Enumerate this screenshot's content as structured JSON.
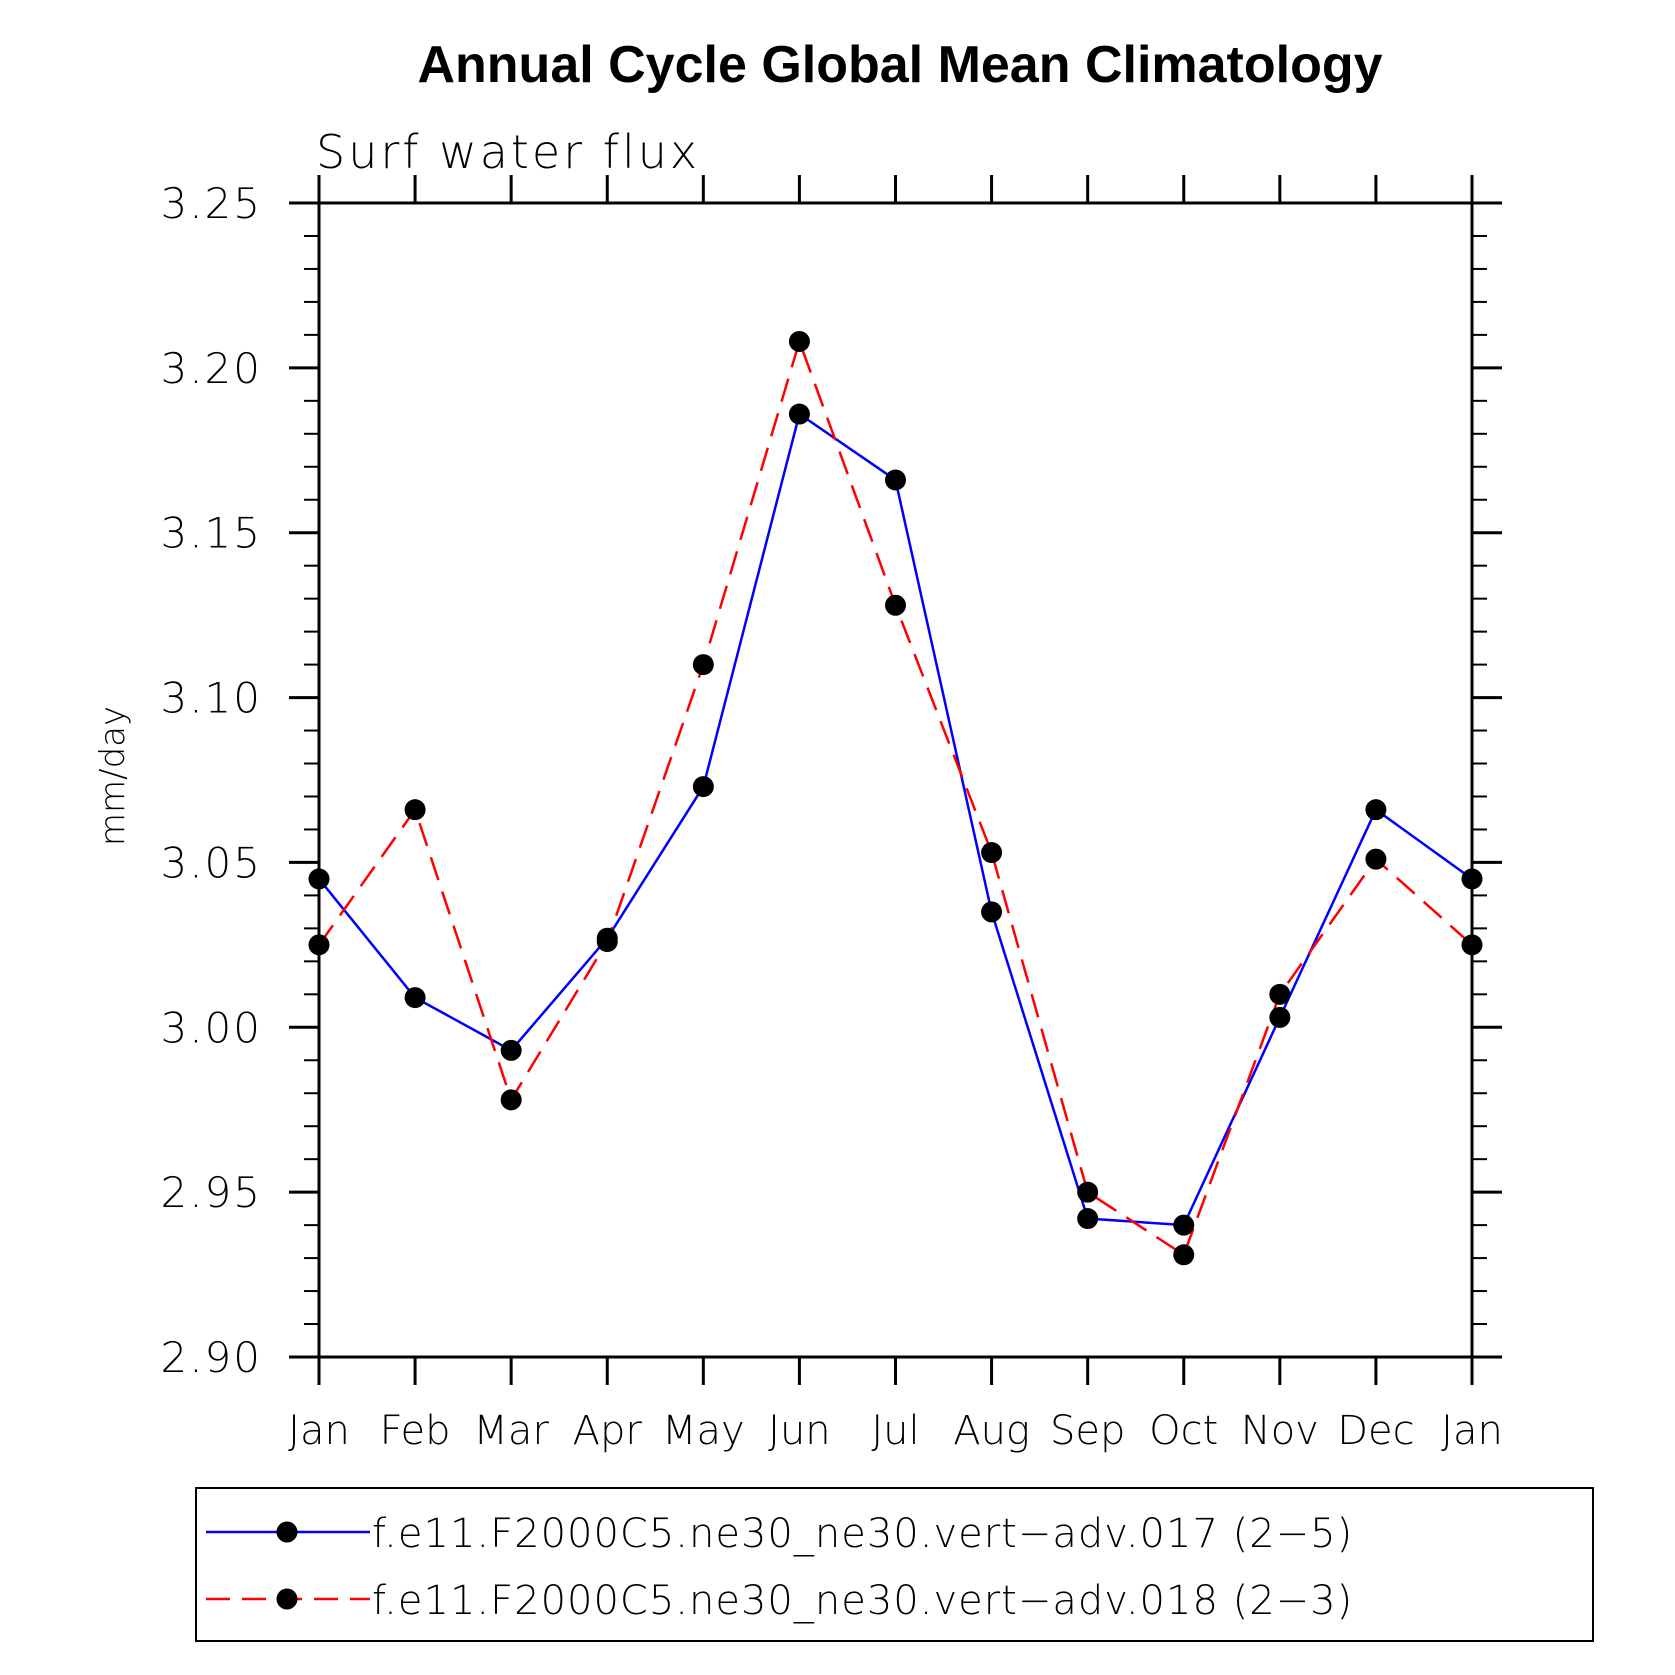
{
  "chart_data": {
    "type": "line",
    "title": "Annual Cycle Global Mean Climatology",
    "subtitle": "Surf water flux",
    "xlabel": "",
    "ylabel": "mm/day",
    "categories": [
      "Jan",
      "Feb",
      "Mar",
      "Apr",
      "May",
      "Jun",
      "Jul",
      "Aug",
      "Sep",
      "Oct",
      "Nov",
      "Dec",
      "Jan"
    ],
    "ylim": [
      2.9,
      3.25
    ],
    "y_ticks": [
      "2.90",
      "2.95",
      "3.00",
      "3.05",
      "3.10",
      "3.15",
      "3.20",
      "3.25"
    ],
    "y_tick_values": [
      2.9,
      2.95,
      3.0,
      3.05,
      3.1,
      3.15,
      3.2,
      3.25
    ],
    "grid": false,
    "legend_position": "bottom",
    "series": [
      {
        "name": "f.e11.F2000C5.ne30_ne30.vert−adv.017 (2−5)",
        "color": "#0000ff",
        "line_style": "solid",
        "marker": "filled-circle",
        "values": [
          3.045,
          3.009,
          2.993,
          3.027,
          3.073,
          3.186,
          3.166,
          3.035,
          2.942,
          2.94,
          3.003,
          3.066,
          3.045
        ]
      },
      {
        "name": "f.e11.F2000C5.ne30_ne30.vert−adv.018 (2−3)",
        "color": "#ff0000",
        "line_style": "dashed",
        "marker": "filled-circle",
        "values": [
          3.025,
          3.066,
          2.978,
          3.026,
          3.11,
          3.208,
          3.128,
          3.053,
          2.95,
          2.931,
          3.01,
          3.051,
          3.025
        ]
      }
    ]
  }
}
